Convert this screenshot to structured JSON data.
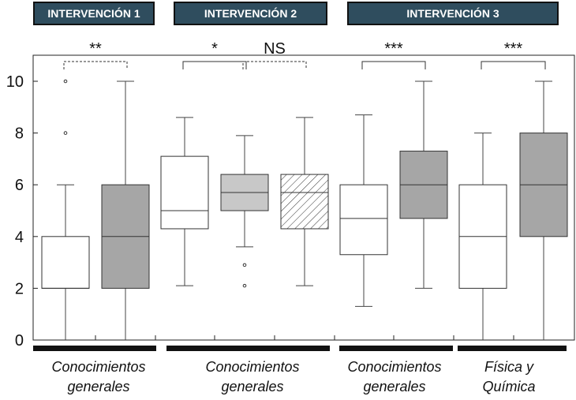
{
  "chart_data": {
    "type": "box",
    "groups": [
      {
        "header": "INTERVENCIÓN 1",
        "label": "Conocimientos generales"
      },
      {
        "header": "INTERVENCIÓN 2",
        "label": "Conocimientos generales"
      },
      {
        "header": "INTERVENCIÓN 3",
        "label": "Conocimientos generales"
      },
      {
        "header": "",
        "label": "Física y Química"
      }
    ],
    "ylim": [
      0,
      11
    ],
    "yticks": [
      0,
      2,
      4,
      6,
      8,
      10
    ],
    "boxes": [
      {
        "group": 0,
        "fill": "#ffffff",
        "hatch": false,
        "min": 0,
        "q1": 2,
        "median": 2,
        "q3": 4,
        "max": 6,
        "outliers": [
          8,
          10
        ]
      },
      {
        "group": 0,
        "fill": "#a6a6a6",
        "hatch": false,
        "min": 0,
        "q1": 2,
        "median": 4,
        "q3": 6,
        "max": 10,
        "outliers": []
      },
      {
        "group": 1,
        "fill": "#ffffff",
        "hatch": false,
        "min": 2.1,
        "q1": 4.3,
        "median": 5,
        "q3": 7.1,
        "max": 8.6,
        "outliers": []
      },
      {
        "group": 1,
        "fill": "#c8c8c8",
        "hatch": false,
        "min": 3.6,
        "q1": 5,
        "median": 5.7,
        "q3": 6.4,
        "max": 7.9,
        "outliers": [
          2.1,
          2.9
        ]
      },
      {
        "group": 1,
        "fill": "#ffffff",
        "hatch": true,
        "min": 2.1,
        "q1": 4.3,
        "median": 5.7,
        "q3": 6.4,
        "max": 8.6,
        "outliers": []
      },
      {
        "group": 2,
        "fill": "#ffffff",
        "hatch": false,
        "min": 1.3,
        "q1": 3.3,
        "median": 4.7,
        "q3": 6,
        "max": 8.7,
        "outliers": []
      },
      {
        "group": 2,
        "fill": "#a6a6a6",
        "hatch": false,
        "min": 2,
        "q1": 4.7,
        "median": 6,
        "q3": 7.3,
        "max": 10,
        "outliers": []
      },
      {
        "group": 3,
        "fill": "#ffffff",
        "hatch": false,
        "min": 0,
        "q1": 2,
        "median": 4,
        "q3": 6,
        "max": 8,
        "outliers": []
      },
      {
        "group": 3,
        "fill": "#a6a6a6",
        "hatch": false,
        "min": 0,
        "q1": 4,
        "median": 6,
        "q3": 8,
        "max": 10,
        "outliers": []
      }
    ],
    "significance": [
      {
        "label": "**",
        "from_box": 0,
        "to_box": 1,
        "style": "dashed"
      },
      {
        "label": "*",
        "from_box": 2,
        "to_box": 3,
        "style": "solid"
      },
      {
        "label": "NS",
        "from_box": 3,
        "to_box": 4,
        "style": "dashed"
      },
      {
        "label": "***",
        "from_box": 5,
        "to_box": 6,
        "style": "solid"
      },
      {
        "label": "***",
        "from_box": 7,
        "to_box": 8,
        "style": "solid"
      }
    ]
  }
}
